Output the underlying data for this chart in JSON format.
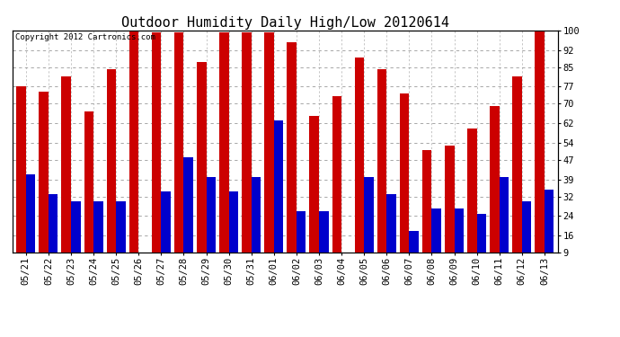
{
  "title": "Outdoor Humidity Daily High/Low 20120614",
  "copyright": "Copyright 2012 Cartronics.com",
  "categories": [
    "05/21",
    "05/22",
    "05/23",
    "05/24",
    "05/25",
    "05/26",
    "05/27",
    "05/28",
    "05/29",
    "05/30",
    "05/31",
    "06/01",
    "06/02",
    "06/03",
    "06/04",
    "06/05",
    "06/06",
    "06/07",
    "06/08",
    "06/09",
    "06/10",
    "06/11",
    "06/12",
    "06/13"
  ],
  "highs": [
    77,
    75,
    81,
    67,
    84,
    100,
    99,
    99,
    87,
    99,
    99,
    99,
    95,
    65,
    73,
    89,
    84,
    74,
    51,
    53,
    60,
    69,
    81,
    100
  ],
  "lows": [
    41,
    33,
    30,
    30,
    30,
    9,
    34,
    48,
    40,
    34,
    40,
    63,
    26,
    26,
    9,
    40,
    33,
    18,
    27,
    27,
    25,
    40,
    30,
    35
  ],
  "high_color": "#cc0000",
  "low_color": "#0000cc",
  "bg_color": "#ffffff",
  "plot_bg_color": "#ffffff",
  "grid_color": "#999999",
  "yticks": [
    9,
    16,
    24,
    32,
    39,
    47,
    54,
    62,
    70,
    77,
    85,
    92,
    100
  ],
  "ymin": 9,
  "ymax": 100,
  "bar_width": 0.42,
  "title_fontsize": 11,
  "tick_fontsize": 7.5,
  "copyright_fontsize": 6.5
}
